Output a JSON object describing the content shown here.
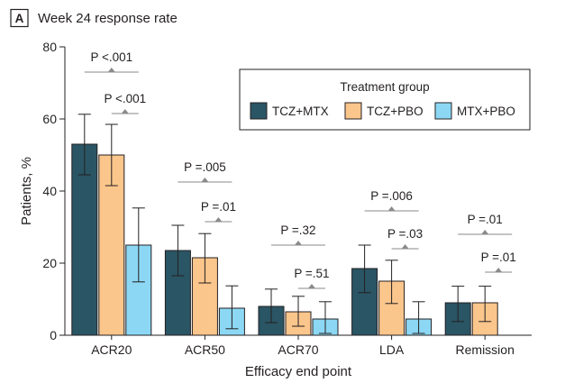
{
  "panel": {
    "letter": "A",
    "title": "Week 24 response rate"
  },
  "chart_data": {
    "type": "bar",
    "title": "Week 24 response rate",
    "xlabel": "Efficacy end point",
    "ylabel": "Patients, %",
    "ylim": [
      0,
      80
    ],
    "yticks": [
      0,
      20,
      40,
      60,
      80
    ],
    "categories": [
      "ACR20",
      "ACR50",
      "ACR70",
      "LDA",
      "Remission"
    ],
    "legend": {
      "title": "Treatment group",
      "placement": "top-right"
    },
    "series": [
      {
        "name": "TCZ+MTX",
        "color": "#2a5565",
        "values": [
          53,
          23.5,
          8,
          18.5,
          9
        ],
        "err_low": [
          44.5,
          16.5,
          3.5,
          11.8,
          3.8
        ],
        "err_high": [
          61.3,
          30.5,
          12.8,
          25,
          13.6
        ]
      },
      {
        "name": "TCZ+PBO",
        "color": "#fbc68c",
        "values": [
          50,
          21.5,
          6.5,
          15,
          9
        ],
        "err_low": [
          41.5,
          14.5,
          2.5,
          8.8,
          3.8
        ],
        "err_high": [
          58.5,
          28.2,
          10.8,
          20.8,
          13.6
        ]
      },
      {
        "name": "MTX+PBO",
        "color": "#8cd8f4",
        "values": [
          25,
          7.5,
          4.5,
          4.5,
          null
        ],
        "err_low": [
          14.8,
          1.8,
          0.5,
          0.5,
          null
        ],
        "err_high": [
          35.3,
          13.7,
          9.3,
          9.3,
          null
        ]
      }
    ],
    "comparisons": [
      {
        "category": "ACR20",
        "label": "P <.001",
        "groups": [
          "TCZ+MTX",
          "MTX+PBO"
        ],
        "y": 73
      },
      {
        "category": "ACR20",
        "label": "P <.001",
        "groups": [
          "TCZ+PBO",
          "MTX+PBO"
        ],
        "y": 61.5
      },
      {
        "category": "ACR50",
        "label": "P =.005",
        "groups": [
          "TCZ+MTX",
          "MTX+PBO"
        ],
        "y": 42.5
      },
      {
        "category": "ACR50",
        "label": "P =.01",
        "groups": [
          "TCZ+PBO",
          "MTX+PBO"
        ],
        "y": 31.5
      },
      {
        "category": "ACR70",
        "label": "P =.32",
        "groups": [
          "TCZ+MTX",
          "MTX+PBO"
        ],
        "y": 25
      },
      {
        "category": "ACR70",
        "label": "P =.51",
        "groups": [
          "TCZ+PBO",
          "MTX+PBO"
        ],
        "y": 13
      },
      {
        "category": "LDA",
        "label": "P =.006",
        "groups": [
          "TCZ+MTX",
          "MTX+PBO"
        ],
        "y": 34.5
      },
      {
        "category": "LDA",
        "label": "P =.03",
        "groups": [
          "TCZ+PBO",
          "MTX+PBO"
        ],
        "y": 24
      },
      {
        "category": "Remission",
        "label": "P =.01",
        "groups": [
          "TCZ+MTX",
          "MTX+PBO"
        ],
        "y": 28
      },
      {
        "category": "Remission",
        "label": "P =.01",
        "groups": [
          "TCZ+PBO",
          "MTX+PBO"
        ],
        "y": 17.5
      }
    ]
  }
}
